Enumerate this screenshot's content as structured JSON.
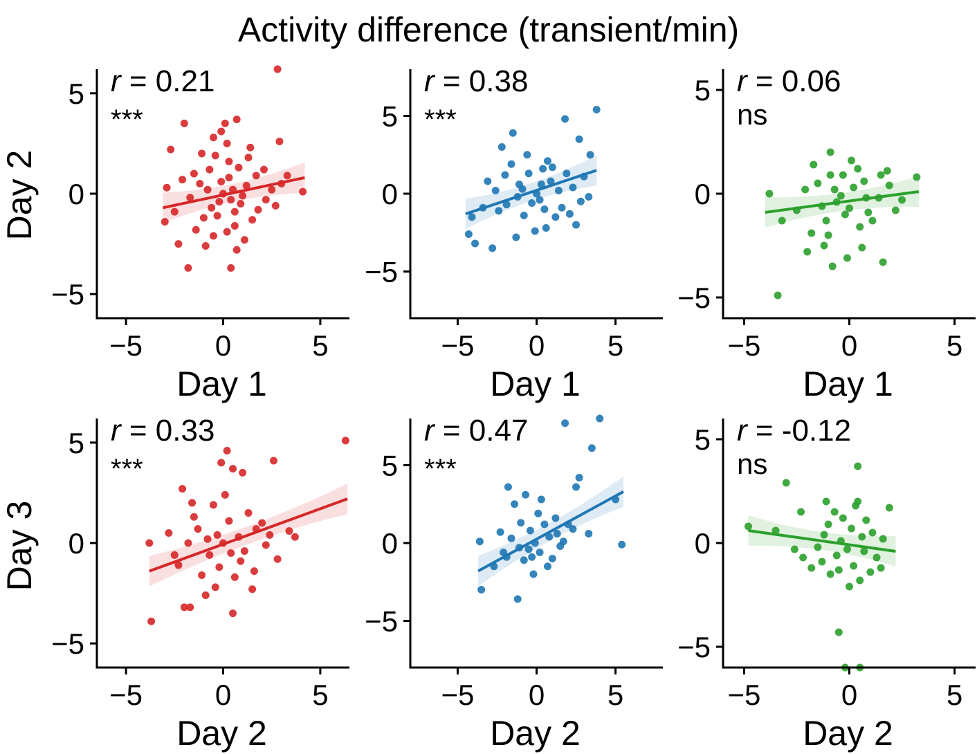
{
  "title": "Activity difference (transient/min)",
  "row_labels": [
    "Day 2",
    "Day 3"
  ],
  "colors": {
    "red": "#d62728",
    "blue": "#1f77b4",
    "green": "#2ca02c"
  },
  "chart_data": [
    {
      "type": "scatter",
      "panel": "row1-col1",
      "color": "#d62728",
      "xlabel": "Day 1",
      "ylabel": "Day 2",
      "xlim": [
        -6.5,
        6.5
      ],
      "ylim": [
        -6.2,
        6.2
      ],
      "xticks": [
        -5,
        0,
        5
      ],
      "yticks": [
        -5,
        0,
        5
      ],
      "r_prefix": "r",
      "r_value": "= 0.21",
      "significance": "***",
      "fit": {
        "x0": -3.1,
        "y0": -0.7,
        "x1": 4.2,
        "y1": 0.8
      },
      "points": [
        [
          2.8,
          6.2
        ],
        [
          -2.0,
          3.5
        ],
        [
          0.1,
          3.5
        ],
        [
          0.7,
          3.7
        ],
        [
          2.9,
          2.6
        ],
        [
          -0.5,
          2.8
        ],
        [
          -2.7,
          2.2
        ],
        [
          -0.1,
          3.1
        ],
        [
          0.2,
          2.5
        ],
        [
          1.3,
          1.8
        ],
        [
          2.1,
          1.2
        ],
        [
          3.3,
          0.9
        ],
        [
          4.1,
          0.1
        ],
        [
          -3.0,
          -1.4
        ],
        [
          -2.3,
          -2.5
        ],
        [
          -1.8,
          -3.7
        ],
        [
          0.4,
          -3.7
        ],
        [
          -0.9,
          -2.6
        ],
        [
          1.1,
          -2.3
        ],
        [
          -1.4,
          -1.8
        ],
        [
          0.6,
          -1.6
        ],
        [
          -0.3,
          -1.1
        ],
        [
          0.9,
          -0.5
        ],
        [
          1.8,
          -0.8
        ],
        [
          2.5,
          0.2
        ],
        [
          -1.2,
          0.5
        ],
        [
          -0.7,
          1.2
        ],
        [
          0.3,
          0.8
        ],
        [
          -0.2,
          -0.4
        ],
        [
          0.5,
          0.2
        ],
        [
          -0.6,
          -0.7
        ],
        [
          1.2,
          0.4
        ],
        [
          -1.7,
          -0.2
        ],
        [
          0.0,
          0.0
        ],
        [
          0.8,
          1.3
        ],
        [
          -1.0,
          -1.2
        ],
        [
          1.5,
          -1.3
        ],
        [
          -2.1,
          0.7
        ],
        [
          2.2,
          -0.3
        ],
        [
          -0.4,
          1.9
        ],
        [
          0.2,
          -1.9
        ],
        [
          1.7,
          0.9
        ],
        [
          -2.5,
          -0.9
        ],
        [
          3.0,
          0.5
        ],
        [
          0.6,
          -0.9
        ],
        [
          -0.8,
          0.2
        ],
        [
          0.4,
          -0.3
        ],
        [
          -0.1,
          0.6
        ],
        [
          1.0,
          -0.1
        ],
        [
          -1.5,
          1.0
        ],
        [
          2.7,
          -0.6
        ],
        [
          -2.9,
          0.3
        ],
        [
          0.3,
          1.6
        ],
        [
          1.4,
          2.3
        ],
        [
          -1.1,
          2.0
        ],
        [
          0.7,
          -2.8
        ],
        [
          -0.5,
          -2.1
        ]
      ]
    },
    {
      "type": "scatter",
      "panel": "row1-col2",
      "color": "#1f77b4",
      "xlabel": "Day 1",
      "ylabel": "Day 2",
      "xlim": [
        -8.0,
        8.0
      ],
      "ylim": [
        -8.0,
        8.0
      ],
      "xticks": [
        -5,
        0,
        5
      ],
      "yticks": [
        -5,
        0,
        5
      ],
      "r_prefix": "r",
      "r_value": "= 0.38",
      "significance": "***",
      "fit": {
        "x0": -4.5,
        "y0": -1.3,
        "x1": 3.8,
        "y1": 1.5
      },
      "points": [
        [
          3.8,
          5.4
        ],
        [
          1.8,
          4.8
        ],
        [
          -1.5,
          3.9
        ],
        [
          -2.2,
          3.0
        ],
        [
          2.7,
          3.5
        ],
        [
          3.4,
          2.5
        ],
        [
          -4.3,
          -2.6
        ],
        [
          -3.9,
          -3.2
        ],
        [
          -2.8,
          -3.5
        ],
        [
          -4.1,
          -1.5
        ],
        [
          -1.3,
          -2.8
        ],
        [
          -0.1,
          -2.4
        ],
        [
          0.6,
          -2.2
        ],
        [
          2.5,
          -2.0
        ],
        [
          -3.4,
          -0.9
        ],
        [
          -2.6,
          0.2
        ],
        [
          -1.9,
          -0.7
        ],
        [
          -1.1,
          0.6
        ],
        [
          -0.5,
          1.3
        ],
        [
          0.2,
          -0.4
        ],
        [
          0.9,
          0.8
        ],
        [
          1.6,
          -0.9
        ],
        [
          2.3,
          0.4
        ],
        [
          3.0,
          1.1
        ],
        [
          -0.8,
          -1.4
        ],
        [
          0.4,
          1.6
        ],
        [
          1.2,
          -1.5
        ],
        [
          -1.6,
          1.9
        ],
        [
          0.0,
          0.0
        ],
        [
          0.7,
          2.1
        ],
        [
          -0.3,
          -0.6
        ],
        [
          1.9,
          1.3
        ],
        [
          -2.4,
          -1.1
        ],
        [
          2.8,
          -0.5
        ],
        [
          -0.9,
          0.3
        ],
        [
          0.5,
          -1.0
        ],
        [
          1.4,
          0.2
        ],
        [
          -1.2,
          -0.2
        ],
        [
          -3.1,
          0.8
        ],
        [
          3.3,
          -0.2
        ],
        [
          -0.6,
          2.5
        ],
        [
          0.3,
          0.6
        ],
        [
          2.1,
          -1.3
        ],
        [
          -2.0,
          1.2
        ],
        [
          1.0,
          1.7
        ]
      ]
    },
    {
      "type": "scatter",
      "panel": "row1-col3",
      "color": "#2ca02c",
      "xlabel": "Day 1",
      "ylabel": "Day 2",
      "xlim": [
        -6.0,
        6.0
      ],
      "ylim": [
        -6.0,
        6.0
      ],
      "xticks": [
        -5,
        0,
        5
      ],
      "yticks": [
        -5,
        0,
        5
      ],
      "r_prefix": "r",
      "r_value": "= 0.06",
      "significance": "ns",
      "fit": {
        "x0": -4.0,
        "y0": -0.9,
        "x1": 3.3,
        "y1": 0.1
      },
      "points": [
        [
          -3.4,
          -4.9
        ],
        [
          -3.8,
          0.0
        ],
        [
          -3.2,
          -1.3
        ],
        [
          -2.0,
          -2.8
        ],
        [
          -1.2,
          -2.5
        ],
        [
          -0.1,
          -3.1
        ],
        [
          -0.8,
          -3.5
        ],
        [
          0.6,
          -2.6
        ],
        [
          1.6,
          -3.3
        ],
        [
          -0.9,
          2.0
        ],
        [
          0.1,
          1.6
        ],
        [
          -1.7,
          1.4
        ],
        [
          1.8,
          1.1
        ],
        [
          3.2,
          0.8
        ],
        [
          2.5,
          -0.3
        ],
        [
          -2.5,
          -0.8
        ],
        [
          -1.5,
          0.5
        ],
        [
          -0.6,
          -0.4
        ],
        [
          0.2,
          0.3
        ],
        [
          0.9,
          -0.9
        ],
        [
          -1.1,
          -1.3
        ],
        [
          1.4,
          -0.2
        ],
        [
          -0.3,
          0.9
        ],
        [
          0.5,
          -1.6
        ],
        [
          -0.4,
          -0.1
        ],
        [
          0.7,
          0.6
        ],
        [
          -2.1,
          0.2
        ],
        [
          1.1,
          -1.3
        ],
        [
          -0.9,
          0.9
        ],
        [
          0.0,
          -0.7
        ],
        [
          1.9,
          0.4
        ],
        [
          -1.3,
          -0.6
        ],
        [
          0.4,
          1.2
        ],
        [
          -0.2,
          -1.0
        ],
        [
          2.2,
          -0.8
        ],
        [
          -1.8,
          -1.9
        ],
        [
          0.8,
          -0.2
        ],
        [
          -0.7,
          0.2
        ],
        [
          1.5,
          0.9
        ],
        [
          -1.0,
          -2.0
        ]
      ]
    },
    {
      "type": "scatter",
      "panel": "row2-col1",
      "color": "#d62728",
      "xlabel": "Day 2",
      "ylabel": "Day 3",
      "xlim": [
        -6.5,
        6.5
      ],
      "ylim": [
        -6.2,
        6.2
      ],
      "xticks": [
        -5,
        0,
        5
      ],
      "yticks": [
        -5,
        0,
        5
      ],
      "r_prefix": "r",
      "r_value": "= 0.33",
      "significance": "***",
      "fit": {
        "x0": -3.8,
        "y0": -1.4,
        "x1": 6.4,
        "y1": 2.2
      },
      "points": [
        [
          6.3,
          5.1
        ],
        [
          0.2,
          4.6
        ],
        [
          -0.1,
          4.0
        ],
        [
          0.5,
          3.7
        ],
        [
          2.6,
          4.1
        ],
        [
          1.0,
          3.5
        ],
        [
          -2.1,
          2.7
        ],
        [
          -3.7,
          -3.9
        ],
        [
          -3.8,
          0.0
        ],
        [
          -2.0,
          -3.2
        ],
        [
          -1.7,
          -3.2
        ],
        [
          0.5,
          -3.5
        ],
        [
          -0.9,
          -2.6
        ],
        [
          1.5,
          -2.3
        ],
        [
          3.4,
          0.6
        ],
        [
          3.7,
          0.3
        ],
        [
          2.8,
          -0.8
        ],
        [
          -2.8,
          0.5
        ],
        [
          -2.3,
          -1.1
        ],
        [
          -1.5,
          1.3
        ],
        [
          -0.7,
          -0.6
        ],
        [
          0.3,
          1.1
        ],
        [
          0.9,
          -0.9
        ],
        [
          1.7,
          0.7
        ],
        [
          -1.1,
          -1.6
        ],
        [
          0.6,
          -1.7
        ],
        [
          -0.3,
          0.4
        ],
        [
          1.3,
          1.5
        ],
        [
          -1.8,
          0.0
        ],
        [
          0.0,
          0.0
        ],
        [
          2.2,
          -0.1
        ],
        [
          -0.5,
          1.9
        ],
        [
          0.8,
          0.3
        ],
        [
          -1.3,
          0.7
        ],
        [
          1.1,
          -0.4
        ],
        [
          -0.2,
          -1.2
        ],
        [
          2.0,
          1.0
        ],
        [
          -2.5,
          -0.6
        ],
        [
          0.4,
          -0.5
        ],
        [
          -0.8,
          0.2
        ],
        [
          1.6,
          -1.4
        ],
        [
          -1.6,
          2.0
        ],
        [
          0.1,
          2.4
        ],
        [
          2.4,
          0.4
        ],
        [
          -0.4,
          -2.2
        ]
      ]
    },
    {
      "type": "scatter",
      "panel": "row2-col2",
      "color": "#1f77b4",
      "xlabel": "Day 2",
      "ylabel": "Day 3",
      "xlim": [
        -8.0,
        8.0
      ],
      "ylim": [
        -8.0,
        8.0
      ],
      "xticks": [
        -5,
        0,
        5
      ],
      "yticks": [
        -5,
        0,
        5
      ],
      "r_prefix": "r",
      "r_value": "= 0.47",
      "significance": "***",
      "fit": {
        "x0": -3.7,
        "y0": -1.8,
        "x1": 5.5,
        "y1": 3.3
      },
      "points": [
        [
          1.8,
          7.7
        ],
        [
          4.0,
          8.0
        ],
        [
          3.5,
          6.1
        ],
        [
          2.7,
          4.2
        ],
        [
          2.5,
          3.6
        ],
        [
          5.0,
          2.8
        ],
        [
          5.4,
          -0.1
        ],
        [
          -3.5,
          -3.0
        ],
        [
          -1.2,
          -3.6
        ],
        [
          -0.2,
          -2.0
        ],
        [
          -3.6,
          0.1
        ],
        [
          -2.3,
          0.7
        ],
        [
          -1.8,
          3.6
        ],
        [
          -0.7,
          3.1
        ],
        [
          0.3,
          2.8
        ],
        [
          -1.4,
          2.5
        ],
        [
          1.2,
          1.6
        ],
        [
          2.0,
          1.2
        ],
        [
          3.3,
          0.6
        ],
        [
          -2.7,
          -1.5
        ],
        [
          -1.9,
          -0.9
        ],
        [
          -1.1,
          -0.3
        ],
        [
          -0.4,
          0.8
        ],
        [
          0.2,
          -0.6
        ],
        [
          0.8,
          0.4
        ],
        [
          1.5,
          -0.2
        ],
        [
          -0.8,
          -1.1
        ],
        [
          0.5,
          1.2
        ],
        [
          -0.1,
          0.0
        ],
        [
          1.0,
          -1.0
        ],
        [
          -1.6,
          0.3
        ],
        [
          2.3,
          0.9
        ],
        [
          -0.5,
          -0.4
        ],
        [
          0.7,
          -1.5
        ],
        [
          1.7,
          0.1
        ],
        [
          -2.1,
          -0.6
        ],
        [
          0.1,
          1.9
        ],
        [
          -1.0,
          1.3
        ],
        [
          1.3,
          0.6
        ],
        [
          -0.3,
          -0.9
        ]
      ]
    },
    {
      "type": "scatter",
      "panel": "row2-col3",
      "color": "#2ca02c",
      "xlabel": "Day 2",
      "ylabel": "Day 3",
      "xlim": [
        -6.0,
        6.0
      ],
      "ylim": [
        -6.0,
        6.0
      ],
      "xticks": [
        -5,
        0,
        5
      ],
      "yticks": [
        -5,
        0,
        5
      ],
      "r_prefix": "r",
      "r_value": "= -0.12",
      "significance": "ns",
      "fit": {
        "x0": -4.8,
        "y0": 0.6,
        "x1": 2.2,
        "y1": -0.4
      },
      "points": [
        [
          -3.0,
          2.9
        ],
        [
          0.4,
          3.7
        ],
        [
          -0.5,
          -4.3
        ],
        [
          -0.2,
          -6.0
        ],
        [
          0.5,
          -6.0
        ],
        [
          -4.8,
          0.8
        ],
        [
          -3.5,
          0.6
        ],
        [
          -2.2,
          -0.7
        ],
        [
          -2.3,
          1.5
        ],
        [
          -1.1,
          2.0
        ],
        [
          0.3,
          1.8
        ],
        [
          1.9,
          1.7
        ],
        [
          1.5,
          -1.2
        ],
        [
          -1.8,
          -1.2
        ],
        [
          -1.2,
          0.4
        ],
        [
          -0.6,
          -0.6
        ],
        [
          0.1,
          0.7
        ],
        [
          0.7,
          -0.4
        ],
        [
          -0.9,
          -1.5
        ],
        [
          1.1,
          0.5
        ],
        [
          -0.3,
          1.2
        ],
        [
          0.5,
          -1.8
        ],
        [
          -0.4,
          0.1
        ],
        [
          0.8,
          1.1
        ],
        [
          -1.5,
          -0.2
        ],
        [
          1.3,
          -0.7
        ],
        [
          -0.7,
          1.5
        ],
        [
          0.2,
          -1.1
        ],
        [
          -0.1,
          -0.3
        ],
        [
          0.6,
          0.3
        ],
        [
          -1.0,
          0.9
        ],
        [
          1.6,
          0.2
        ],
        [
          -2.6,
          -0.3
        ],
        [
          0.0,
          -2.1
        ],
        [
          -0.5,
          -1.3
        ],
        [
          1.0,
          -1.4
        ],
        [
          -1.3,
          -0.9
        ],
        [
          0.4,
          2.0
        ]
      ]
    }
  ]
}
